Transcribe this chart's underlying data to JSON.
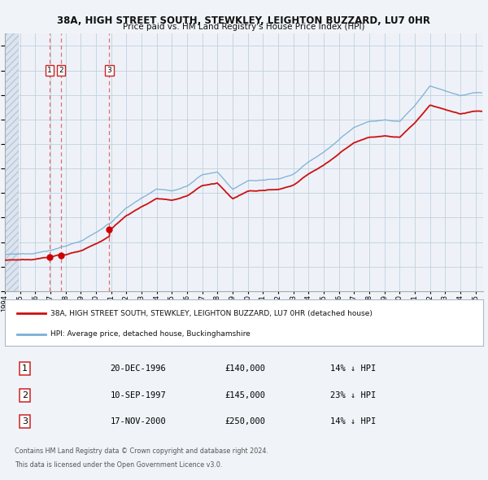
{
  "title": "38A, HIGH STREET SOUTH, STEWKLEY, LEIGHTON BUZZARD, LU7 0HR",
  "subtitle": "Price paid vs. HM Land Registry's House Price Index (HPI)",
  "xlim": [
    1994.0,
    2025.5
  ],
  "ylim": [
    0,
    1050000
  ],
  "yticks": [
    0,
    100000,
    200000,
    300000,
    400000,
    500000,
    600000,
    700000,
    800000,
    900000,
    1000000
  ],
  "hpi_color": "#7bafd4",
  "price_color": "#cc1111",
  "sale_marker_color": "#cc0000",
  "dashed_line_color": "#e06060",
  "transactions": [
    {
      "label": "1",
      "date": "20-DEC-1996",
      "year": 1996.96,
      "price": 140000,
      "hpi_discount": 0.14
    },
    {
      "label": "2",
      "date": "10-SEP-1997",
      "year": 1997.7,
      "price": 145000,
      "hpi_discount": 0.23
    },
    {
      "label": "3",
      "date": "17-NOV-2000",
      "year": 2000.88,
      "price": 250000,
      "hpi_discount": 0.14
    }
  ],
  "legend_label_price": "38A, HIGH STREET SOUTH, STEWKLEY, LEIGHTON BUZZARD, LU7 0HR (detached house)",
  "legend_label_hpi": "HPI: Average price, detached house, Buckinghamshire",
  "table_rows": [
    {
      "label": "1",
      "date": "20-DEC-1996",
      "price": "£140,000",
      "note": "14% ↓ HPI"
    },
    {
      "label": "2",
      "date": "10-SEP-1997",
      "price": "£145,000",
      "note": "23% ↓ HPI"
    },
    {
      "label": "3",
      "date": "17-NOV-2000",
      "price": "£250,000",
      "note": "14% ↓ HPI"
    }
  ],
  "footer1": "Contains HM Land Registry data © Crown copyright and database right 2024.",
  "footer2": "This data is licensed under the Open Government Licence v3.0.",
  "bg_color": "#f0f4f8",
  "plot_bg": "#eef2f8"
}
